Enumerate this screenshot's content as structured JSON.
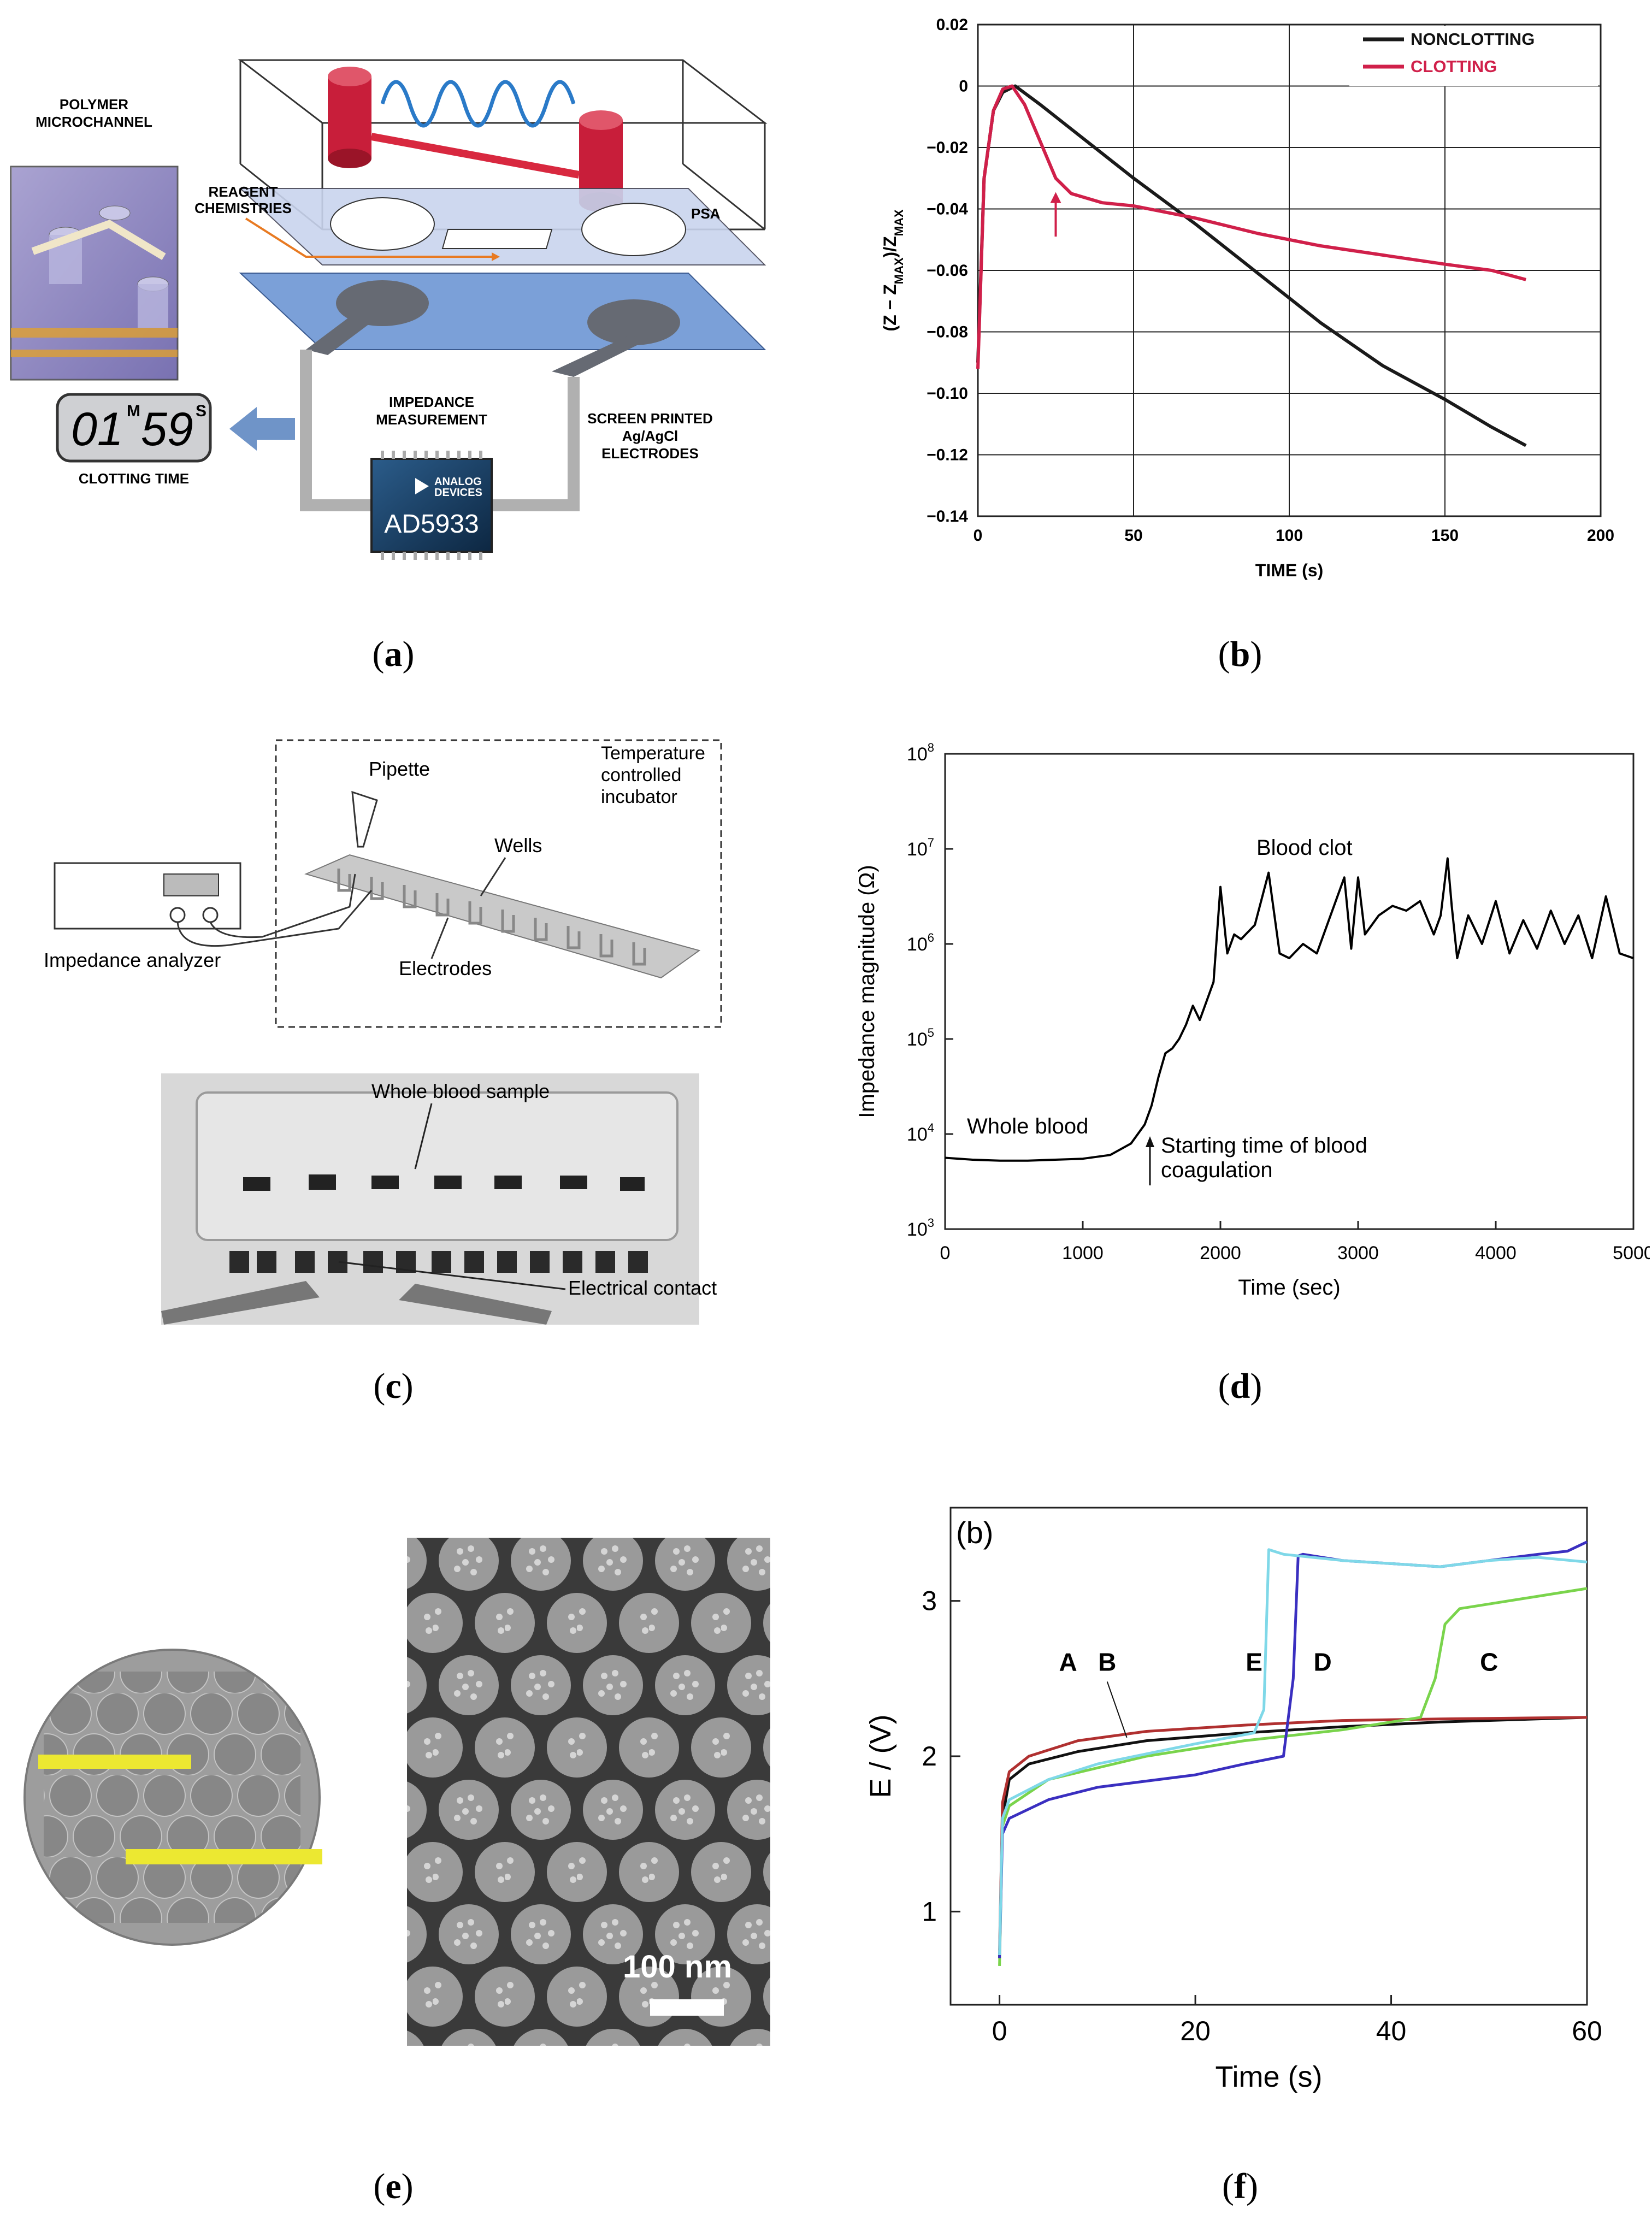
{
  "captions": {
    "a": {
      "open": "(",
      "letter": "a",
      "close": ")"
    },
    "b": {
      "open": "(",
      "letter": "b",
      "close": ")"
    },
    "c": {
      "open": "(",
      "letter": "c",
      "close": ")"
    },
    "d": {
      "open": "(",
      "letter": "d",
      "close": ")"
    },
    "e": {
      "open": "(",
      "letter": "e",
      "close": ")"
    },
    "f": {
      "open": "(",
      "letter": "f",
      "close": ")"
    }
  },
  "panel_a": {
    "polymer_label_1": "POLYMER",
    "polymer_label_2": "MICROCHANNEL",
    "reagent_1": "REAGENT",
    "reagent_2": "CHEMISTRIES",
    "psa": "PSA",
    "impedance_1": "IMPEDANCE",
    "impedance_2": "MEASUREMENT",
    "screen_1": "SCREEN PRINTED",
    "screen_2": "Ag/AgCl",
    "screen_3": "ELECTRODES",
    "display_min": "01",
    "display_min_unit": "M",
    "display_sec": "59",
    "display_sec_unit": "S",
    "clotting_time": "CLOTTING TIME",
    "chip_brand_1": "ANALOG",
    "chip_brand_2": "DEVICES",
    "chip_model": "AD5933"
  },
  "panel_c": {
    "pipette": "Pipette",
    "temp_1": "Temperature",
    "temp_2": "controlled",
    "temp_3": "incubator",
    "wells": "Wells",
    "analyzer": "Impedance analyzer",
    "electrodes": "Electrodes",
    "whole_blood_sample": "Whole blood sample",
    "electrical_contact": "Electrical contact"
  },
  "panel_e": {
    "scale_bar": "100 nm"
  },
  "chart_data": [
    {
      "id": "b",
      "type": "line",
      "xlabel": "TIME (s)",
      "ylabel_parts": [
        "(Z − Z",
        "MAX",
        ")/Z",
        "MAX"
      ],
      "xlim": [
        0,
        200
      ],
      "ylim": [
        -0.14,
        0.02
      ],
      "xticks": [
        0,
        50,
        100,
        150,
        200
      ],
      "xtick_labels": [
        "0",
        "50",
        "100",
        "150",
        "200"
      ],
      "yticks": [
        0.02,
        0,
        -0.02,
        -0.04,
        -0.06,
        -0.08,
        -0.1,
        -0.12,
        -0.14
      ],
      "ytick_labels": [
        "0.02",
        "0",
        "−0.02",
        "−0.04",
        "−0.06",
        "−0.08",
        "−0.10",
        "−0.12",
        "−0.14"
      ],
      "grid": true,
      "legend": [
        {
          "name": "NONCLOTTING",
          "color": "#1a1a1a"
        },
        {
          "name": "CLOTTING",
          "color": "#d0204a"
        }
      ],
      "series": [
        {
          "name": "NONCLOTTING",
          "color": "#1a1a1a",
          "x": [
            0,
            2,
            5,
            8,
            12,
            20,
            30,
            50,
            70,
            90,
            110,
            130,
            150,
            165,
            176
          ],
          "y": [
            -0.09,
            -0.03,
            -0.008,
            -0.002,
            0.0,
            -0.006,
            -0.014,
            -0.03,
            -0.045,
            -0.061,
            -0.077,
            -0.091,
            -0.102,
            -0.111,
            -0.117
          ]
        },
        {
          "name": "CLOTTING",
          "color": "#d0204a",
          "x": [
            0,
            2,
            5,
            8,
            11,
            15,
            20,
            25,
            30,
            40,
            50,
            70,
            90,
            110,
            130,
            150,
            165,
            176
          ],
          "y": [
            -0.092,
            -0.03,
            -0.008,
            -0.001,
            0.0,
            -0.006,
            -0.018,
            -0.03,
            -0.035,
            -0.038,
            -0.039,
            -0.043,
            -0.048,
            -0.052,
            -0.055,
            -0.058,
            -0.06,
            -0.063
          ]
        }
      ],
      "annotation_arrow_x": 25
    },
    {
      "id": "d",
      "type": "line",
      "xlabel": "Time (sec)",
      "ylabel": "Impedance magnitude (Ω)",
      "yscale": "log",
      "xlim": [
        0,
        5000
      ],
      "ylim_exp": [
        3,
        8
      ],
      "xticks": [
        0,
        1000,
        2000,
        3000,
        4000,
        5000
      ],
      "xtick_labels": [
        "0",
        "1000",
        "2000",
        "3000",
        "4000",
        "5000"
      ],
      "ytick_exps": [
        3,
        4,
        5,
        6,
        7,
        8
      ],
      "ytick_base": "10",
      "annotations": {
        "whole_blood": "Whole blood",
        "blood_clot": "Blood clot",
        "start_1": "Starting time of blood",
        "start_2": "coagulation"
      },
      "series": [
        {
          "name": "impedance",
          "color": "#000000",
          "x": [
            0,
            200,
            400,
            600,
            800,
            1000,
            1200,
            1350,
            1450,
            1500,
            1550,
            1600,
            1650,
            1700,
            1750,
            1800,
            1850,
            1900,
            1950,
            2000,
            2050,
            2100,
            2150,
            2250,
            2350,
            2430,
            2500,
            2600,
            2700,
            2800,
            2900,
            2950,
            3000,
            3050,
            3150,
            3250,
            3350,
            3450,
            3550,
            3600,
            3650,
            3680,
            3720,
            3800,
            3900,
            4000,
            4100,
            4200,
            4300,
            4400,
            4500,
            4600,
            4700,
            4800,
            4900,
            5000
          ],
          "log10y": [
            3.75,
            3.73,
            3.72,
            3.72,
            3.73,
            3.74,
            3.78,
            3.9,
            4.1,
            4.3,
            4.6,
            4.85,
            4.9,
            5.0,
            5.15,
            5.35,
            5.2,
            5.4,
            5.6,
            6.6,
            5.9,
            6.1,
            6.05,
            6.2,
            6.75,
            5.9,
            5.85,
            6.0,
            5.9,
            6.3,
            6.7,
            5.95,
            6.7,
            6.1,
            6.3,
            6.4,
            6.35,
            6.45,
            6.1,
            6.3,
            6.9,
            6.4,
            5.85,
            6.3,
            6.0,
            6.45,
            5.9,
            6.25,
            5.95,
            6.35,
            6.0,
            6.3,
            5.85,
            6.5,
            5.9,
            5.85
          ]
        }
      ]
    },
    {
      "id": "f",
      "type": "line",
      "panel_label": "(b)",
      "xlabel": "Time (s)",
      "ylabel": "E / (V)",
      "xlim": [
        -5,
        60
      ],
      "ylim": [
        0.4,
        3.6
      ],
      "xticks": [
        0,
        20,
        40,
        60
      ],
      "xtick_labels": [
        "0",
        "20",
        "40",
        "60"
      ],
      "yticks": [
        1,
        2,
        3
      ],
      "ytick_labels": [
        "1",
        "2",
        "3"
      ],
      "curve_labels": [
        "A",
        "B",
        "C",
        "D",
        "E"
      ],
      "series": [
        {
          "name": "A",
          "color": "#111111",
          "x": [
            0,
            0.3,
            1,
            3,
            8,
            15,
            25,
            35,
            45,
            60
          ],
          "y": [
            0.7,
            1.6,
            1.85,
            1.95,
            2.03,
            2.1,
            2.15,
            2.19,
            2.22,
            2.25
          ]
        },
        {
          "name": "B",
          "color": "#b03030",
          "x": [
            0,
            0.3,
            1,
            3,
            8,
            15,
            25,
            35,
            45,
            60
          ],
          "y": [
            0.75,
            1.7,
            1.9,
            2.0,
            2.1,
            2.16,
            2.2,
            2.23,
            2.24,
            2.25
          ]
        },
        {
          "name": "C",
          "color": "#7ad44c",
          "x": [
            0,
            0.3,
            1,
            5,
            15,
            25,
            35,
            43,
            44.5,
            45.5,
            47,
            50,
            55,
            60
          ],
          "y": [
            0.65,
            1.55,
            1.68,
            1.85,
            2.0,
            2.1,
            2.17,
            2.25,
            2.5,
            2.85,
            2.95,
            2.98,
            3.03,
            3.08
          ]
        },
        {
          "name": "D",
          "color": "#3a2fc0",
          "x": [
            0,
            0.3,
            1,
            5,
            10,
            20,
            25,
            29,
            30,
            30.5,
            31,
            35,
            40,
            45,
            50,
            55,
            58,
            60
          ],
          "y": [
            0.7,
            1.5,
            1.6,
            1.72,
            1.8,
            1.88,
            1.95,
            2.0,
            2.5,
            3.29,
            3.3,
            3.26,
            3.24,
            3.22,
            3.26,
            3.3,
            3.32,
            3.38
          ]
        },
        {
          "name": "E",
          "color": "#7fd8e8",
          "x": [
            0,
            0.3,
            1,
            5,
            10,
            20,
            26,
            27,
            27.5,
            29,
            35,
            40,
            45,
            50,
            55,
            60
          ],
          "y": [
            0.72,
            1.6,
            1.72,
            1.85,
            1.95,
            2.08,
            2.15,
            2.3,
            3.33,
            3.3,
            3.26,
            3.24,
            3.22,
            3.26,
            3.28,
            3.25
          ]
        }
      ]
    }
  ]
}
